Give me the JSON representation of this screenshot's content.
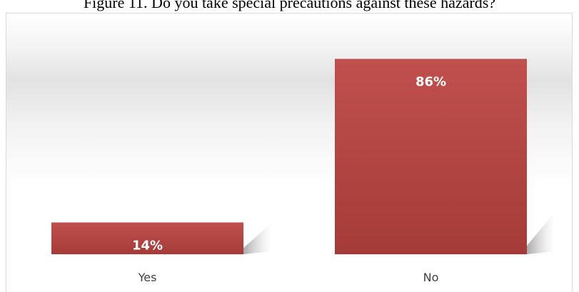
{
  "caption": "Figure 11. Do you take special precautions against these hazards?",
  "chart_data": {
    "type": "bar",
    "categories": [
      "Yes",
      "No"
    ],
    "values": [
      14,
      86
    ],
    "value_labels": [
      "14%",
      "86%"
    ],
    "ylim": [
      0,
      100
    ],
    "grid": false,
    "legend": "none",
    "title": "",
    "xlabel": "",
    "ylabel": "",
    "colors": {
      "bar_top": "#c0504d",
      "bar_bottom": "#a53b38",
      "shadow": "#bfbfbf"
    }
  }
}
